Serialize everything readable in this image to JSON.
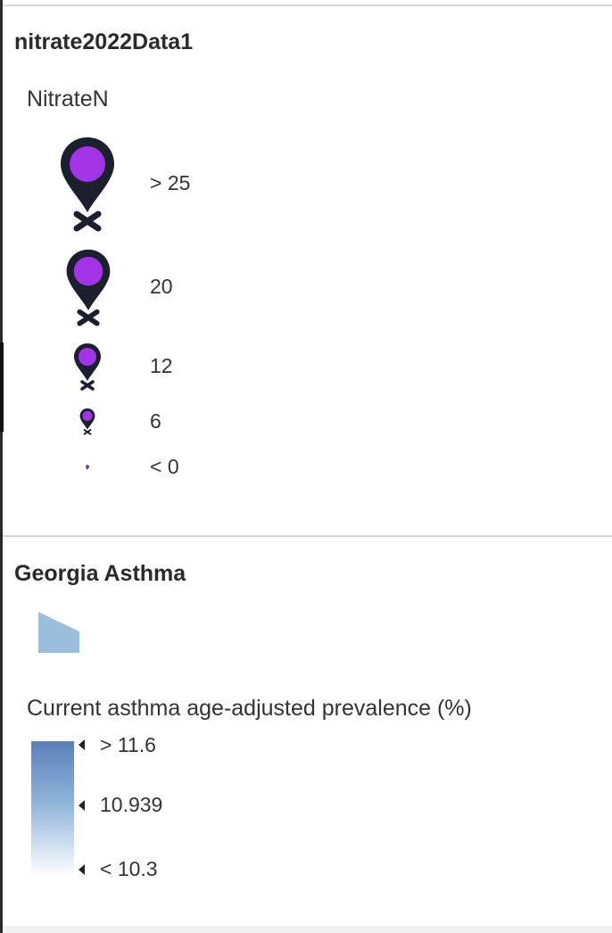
{
  "layers": [
    {
      "title": "nitrate2022Data1",
      "field": "NitrateN",
      "pin_colors": {
        "body": "#1b1f2e",
        "fill": "#a234e6"
      },
      "size_stops": [
        {
          "label": "> 25"
        },
        {
          "label": "20"
        },
        {
          "label": "12"
        },
        {
          "label": "6"
        },
        {
          "label": "< 0"
        }
      ]
    },
    {
      "title": "Georgia Asthma",
      "swatch_color": "#9bbedc",
      "field": "Current asthma age-adjusted prevalence (%)",
      "ramp": {
        "colors": [
          "#5b7fb8",
          "#8fb3d9",
          "#ffffff"
        ],
        "stops": [
          {
            "label": "> 11.6"
          },
          {
            "label": "10.939"
          },
          {
            "label": "< 10.3"
          }
        ]
      }
    }
  ]
}
